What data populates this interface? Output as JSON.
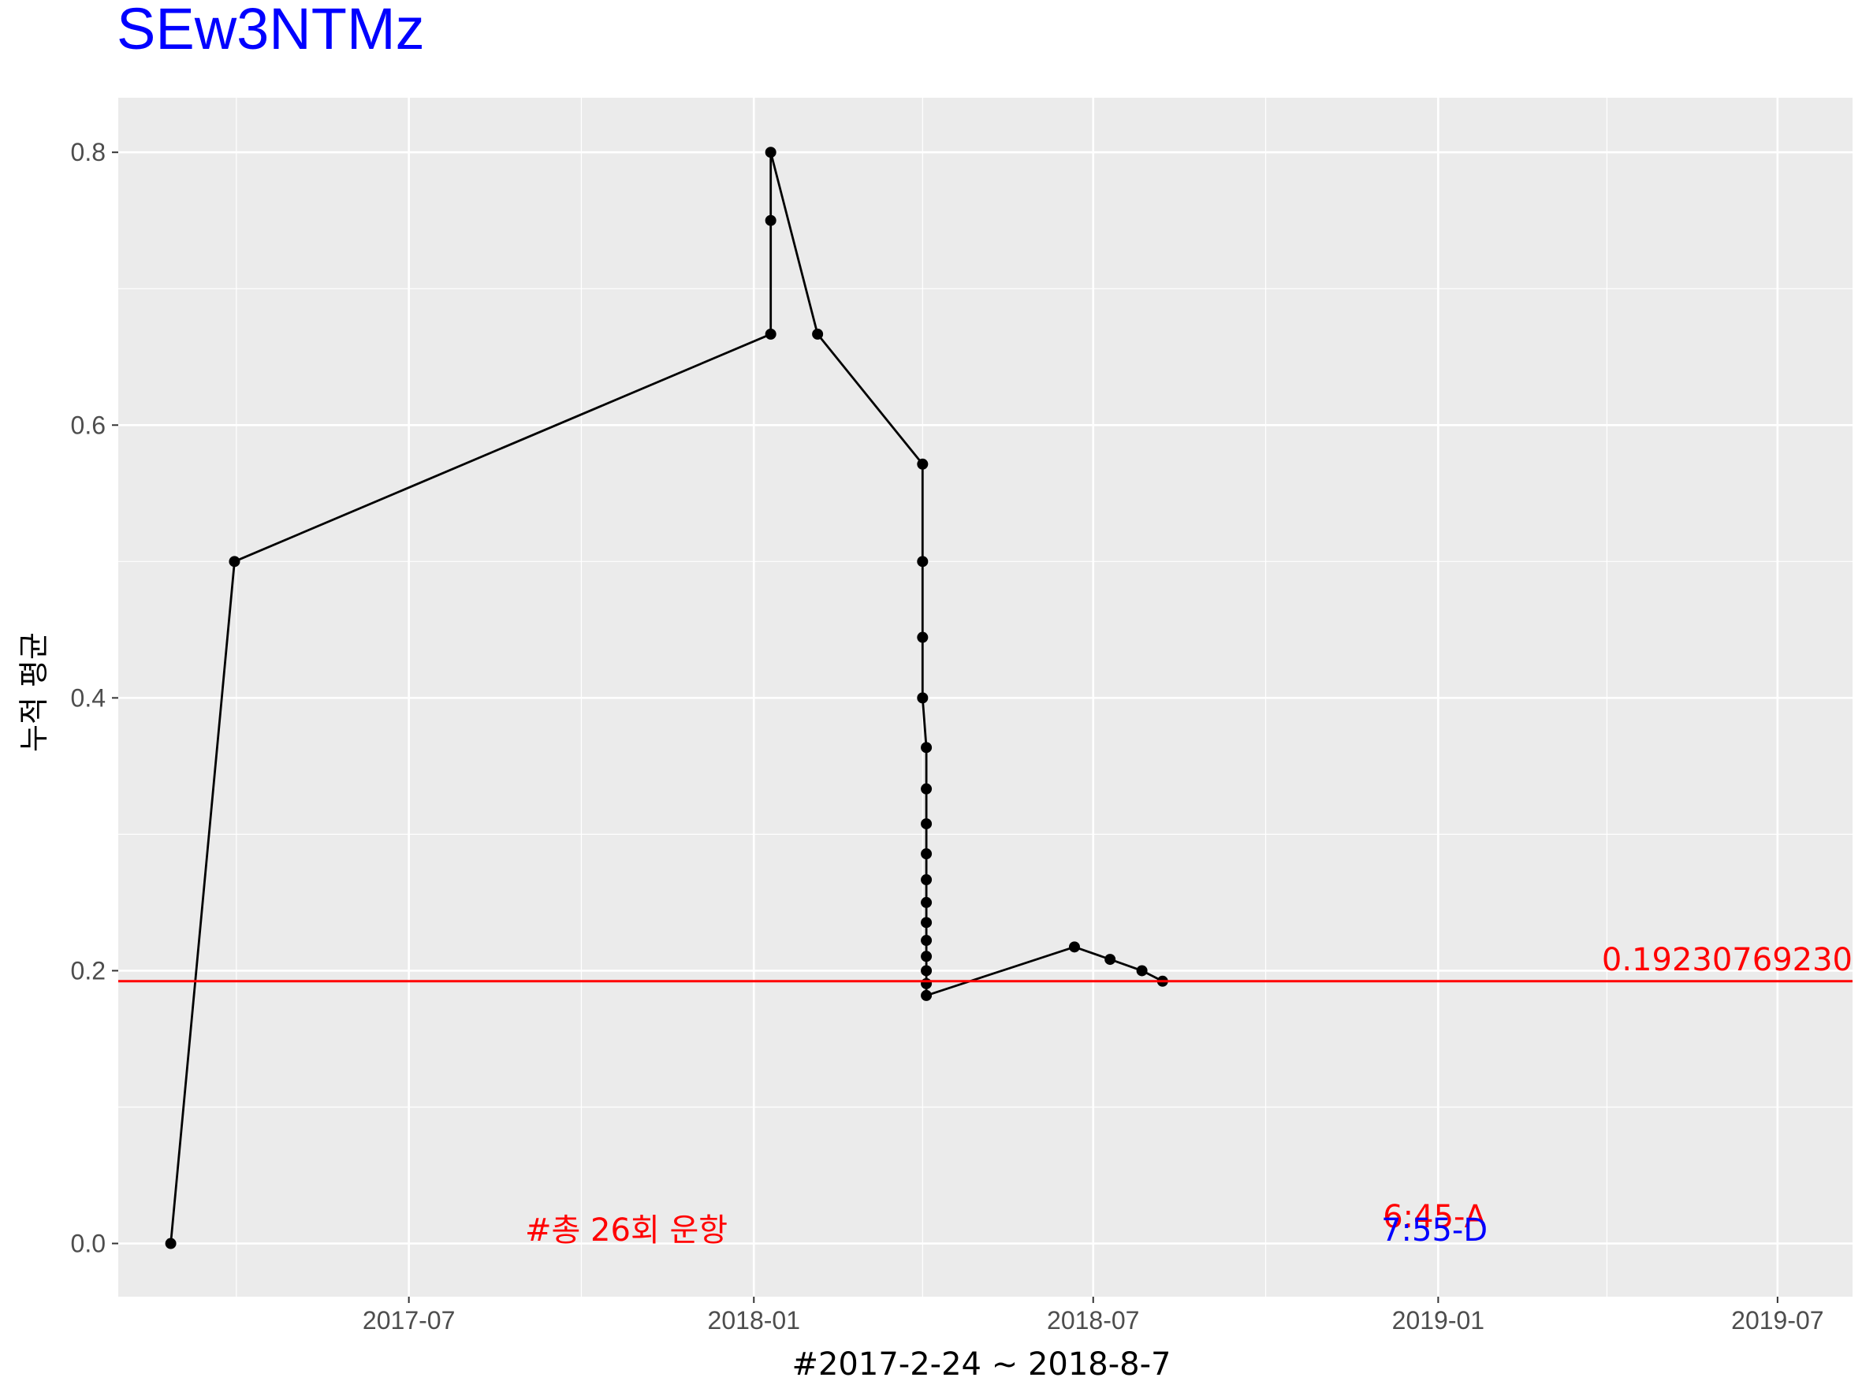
{
  "chart_data": {
    "type": "line",
    "title": "SEw3NTMz",
    "xlabel": "#2017-2-24 ~ 2018-8-7",
    "ylabel": "누적 평균",
    "x_type": "date",
    "xlim": [
      "2017-01-27",
      "2019-08-10"
    ],
    "ylim": [
      -0.039,
      0.84
    ],
    "x_ticks": [
      "2017-07-01",
      "2018-01-01",
      "2018-07-01",
      "2019-01-01",
      "2019-07-01"
    ],
    "x_tick_labels": [
      "2017-07",
      "2018-01",
      "2018-07",
      "2019-01",
      "2019-07"
    ],
    "y_ticks": [
      0.0,
      0.2,
      0.4,
      0.6,
      0.8
    ],
    "y_tick_labels": [
      "0.0",
      "0.2",
      "0.4",
      "0.6",
      "0.8"
    ],
    "grid": true,
    "legend": "none",
    "series": [
      {
        "color": "#000000",
        "points": [
          {
            "x": "2017-02-24",
            "y": 0.0
          },
          {
            "x": "2017-03-30",
            "y": 0.5
          },
          {
            "x": "2018-01-10",
            "y": 0.6667
          },
          {
            "x": "2018-01-10",
            "y": 0.75
          },
          {
            "x": "2018-01-10",
            "y": 0.8
          },
          {
            "x": "2018-02-04",
            "y": 0.6667
          },
          {
            "x": "2018-04-01",
            "y": 0.5714
          },
          {
            "x": "2018-04-01",
            "y": 0.5
          },
          {
            "x": "2018-04-01",
            "y": 0.4444
          },
          {
            "x": "2018-04-01",
            "y": 0.4
          },
          {
            "x": "2018-04-03",
            "y": 0.3636
          },
          {
            "x": "2018-04-03",
            "y": 0.3333
          },
          {
            "x": "2018-04-03",
            "y": 0.3077
          },
          {
            "x": "2018-04-03",
            "y": 0.2857
          },
          {
            "x": "2018-04-03",
            "y": 0.2667
          },
          {
            "x": "2018-04-03",
            "y": 0.25
          },
          {
            "x": "2018-04-03",
            "y": 0.2353
          },
          {
            "x": "2018-04-03",
            "y": 0.2222
          },
          {
            "x": "2018-04-03",
            "y": 0.2105
          },
          {
            "x": "2018-04-03",
            "y": 0.2
          },
          {
            "x": "2018-04-03",
            "y": 0.1905
          },
          {
            "x": "2018-04-03",
            "y": 0.1818
          },
          {
            "x": "2018-06-21",
            "y": 0.2174
          },
          {
            "x": "2018-07-10",
            "y": 0.2083
          },
          {
            "x": "2018-07-27",
            "y": 0.2
          },
          {
            "x": "2018-08-07",
            "y": 0.1923
          }
        ]
      }
    ],
    "hline": {
      "y": 0.192307692,
      "color": "#ff0000",
      "label": "0.19230769230"
    },
    "annotations": [
      {
        "text": "#총 26회 운항",
        "x": "2017-10-25",
        "y": 0.01,
        "color": "#ff0000"
      },
      {
        "text": "6:45-A",
        "x": "2018-12-30",
        "y": 0.02,
        "color": "#ff0000"
      },
      {
        "text": "7:55-D",
        "x": "2018-12-30",
        "y": 0.01,
        "color": "#0000ff"
      }
    ],
    "colors": {
      "title": "#0000ff",
      "panel": "#ebebeb",
      "grid": "#ffffff",
      "line": "#000000",
      "hline": "#ff0000"
    }
  }
}
